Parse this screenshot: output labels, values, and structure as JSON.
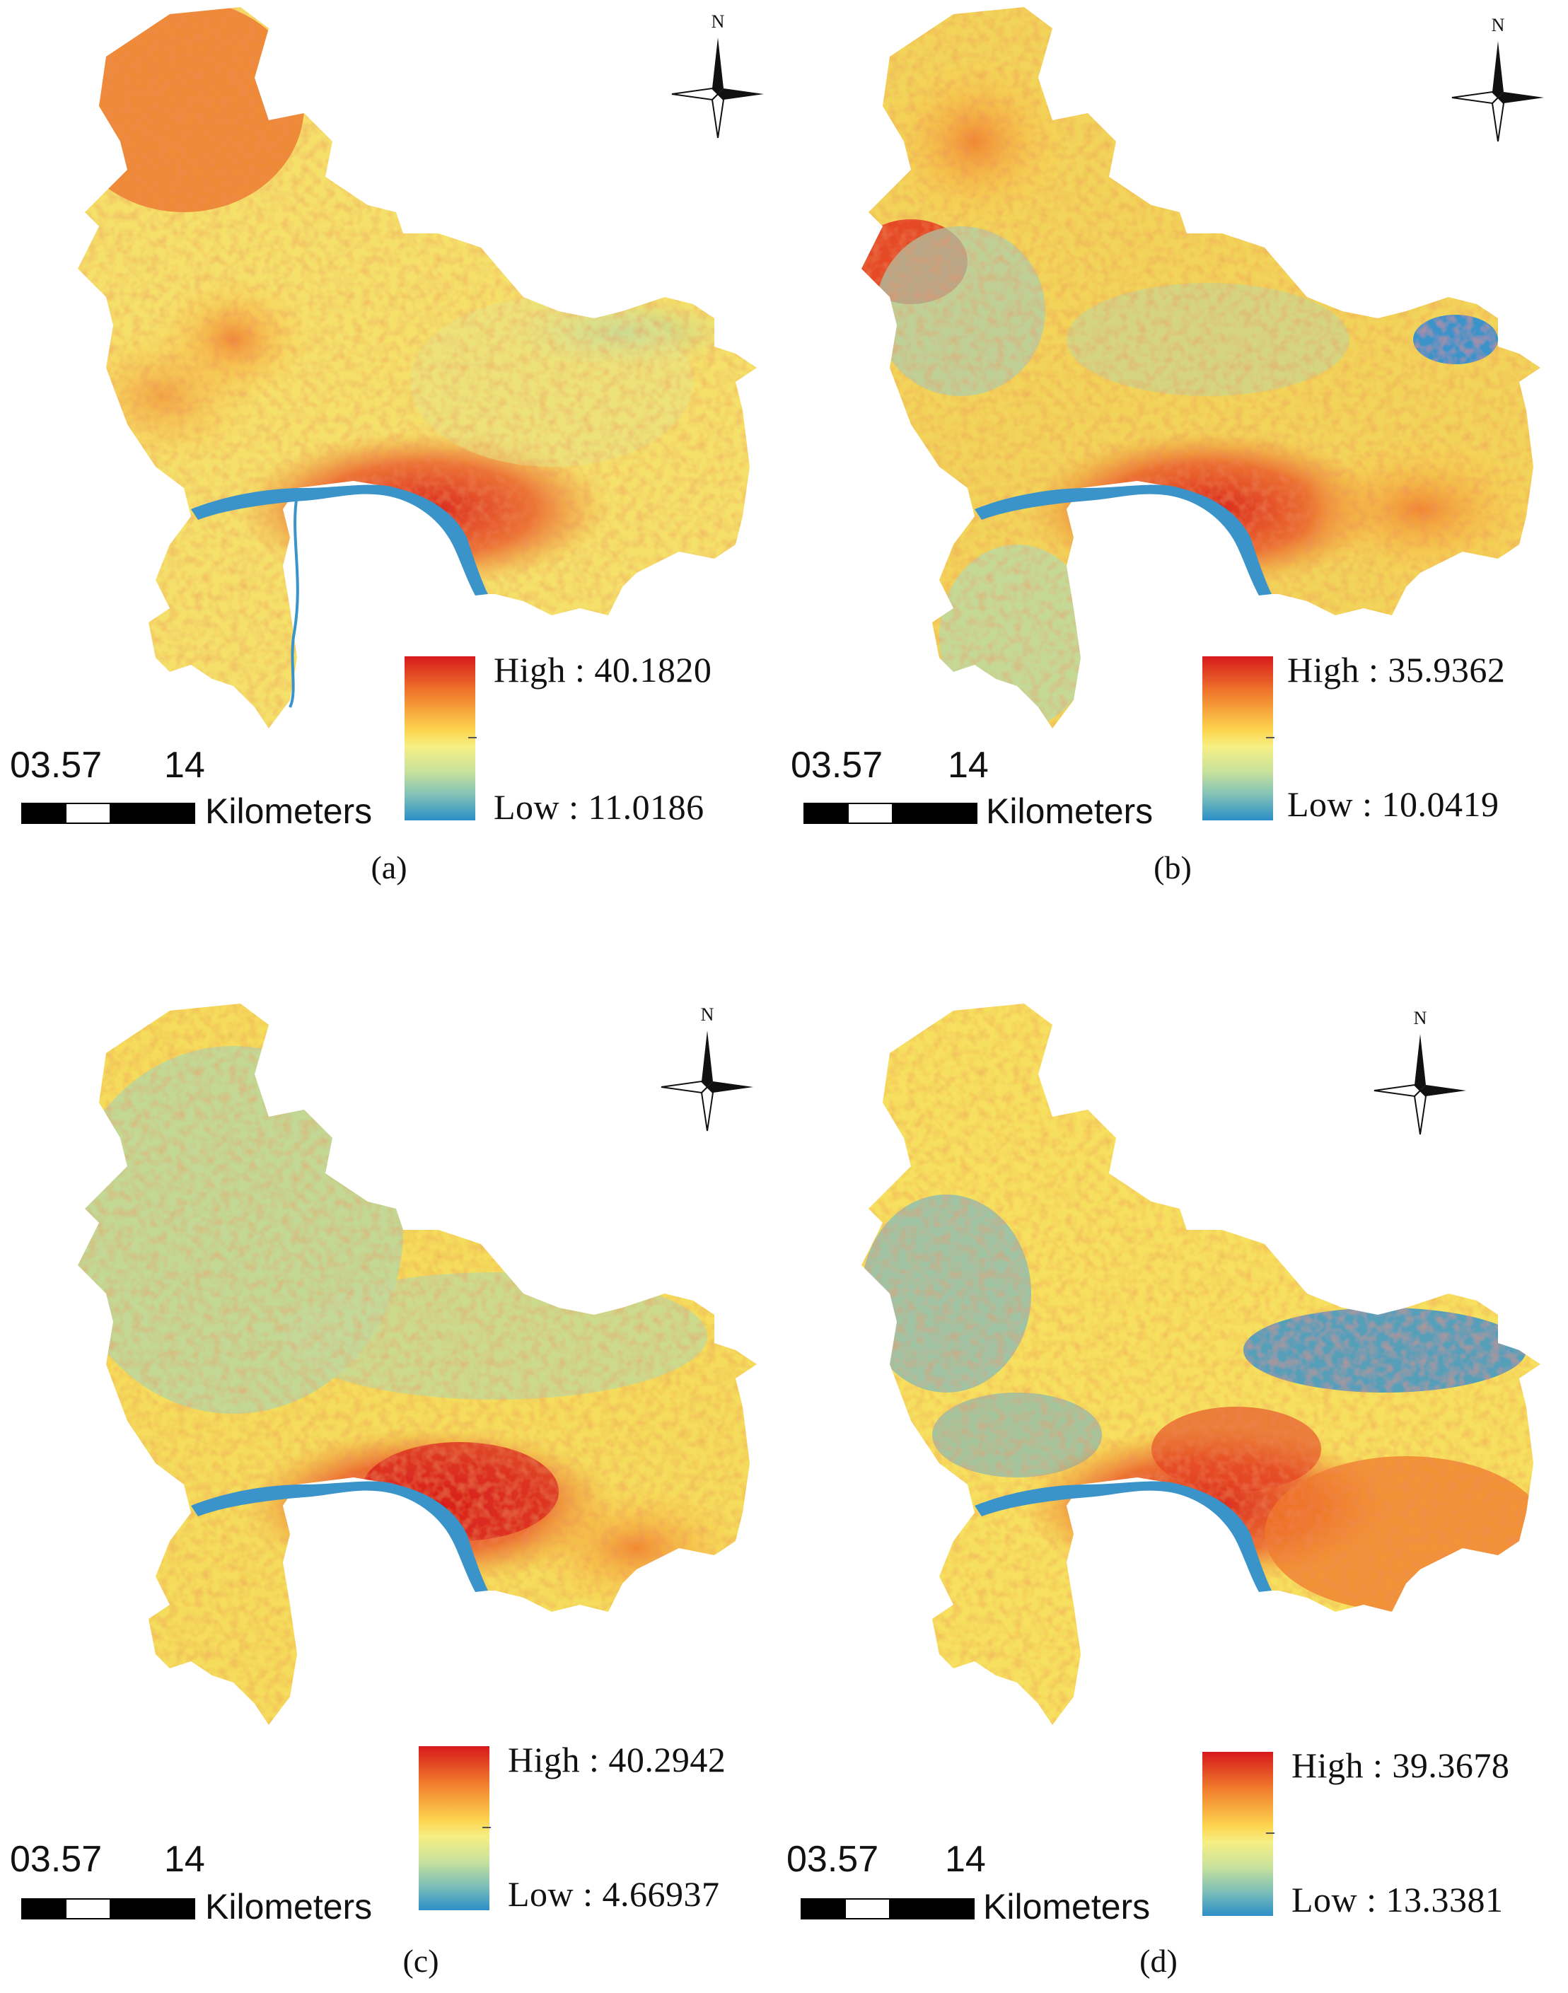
{
  "north_label": "N",
  "scale": {
    "num_a": "03.57",
    "num_b": "14",
    "unit": "Kilometers"
  },
  "panels": [
    {
      "caption": "(a)",
      "legend_high": "High : 40.1820",
      "legend_low": "Low : 11.0186"
    },
    {
      "caption": "(b)",
      "legend_high": "High : 35.9362",
      "legend_low": "Low : 10.0419"
    },
    {
      "caption": "(c)",
      "legend_high": "High : 40.2942",
      "legend_low": "Low : 4.66937"
    },
    {
      "caption": "(d)",
      "legend_high": "High : 39.3678",
      "legend_low": "Low : 13.3381"
    }
  ],
  "colors": {
    "high": "#d7191c",
    "mid": "#f6ef84",
    "low": "#2c8fc8",
    "water": "#3a93c9"
  }
}
